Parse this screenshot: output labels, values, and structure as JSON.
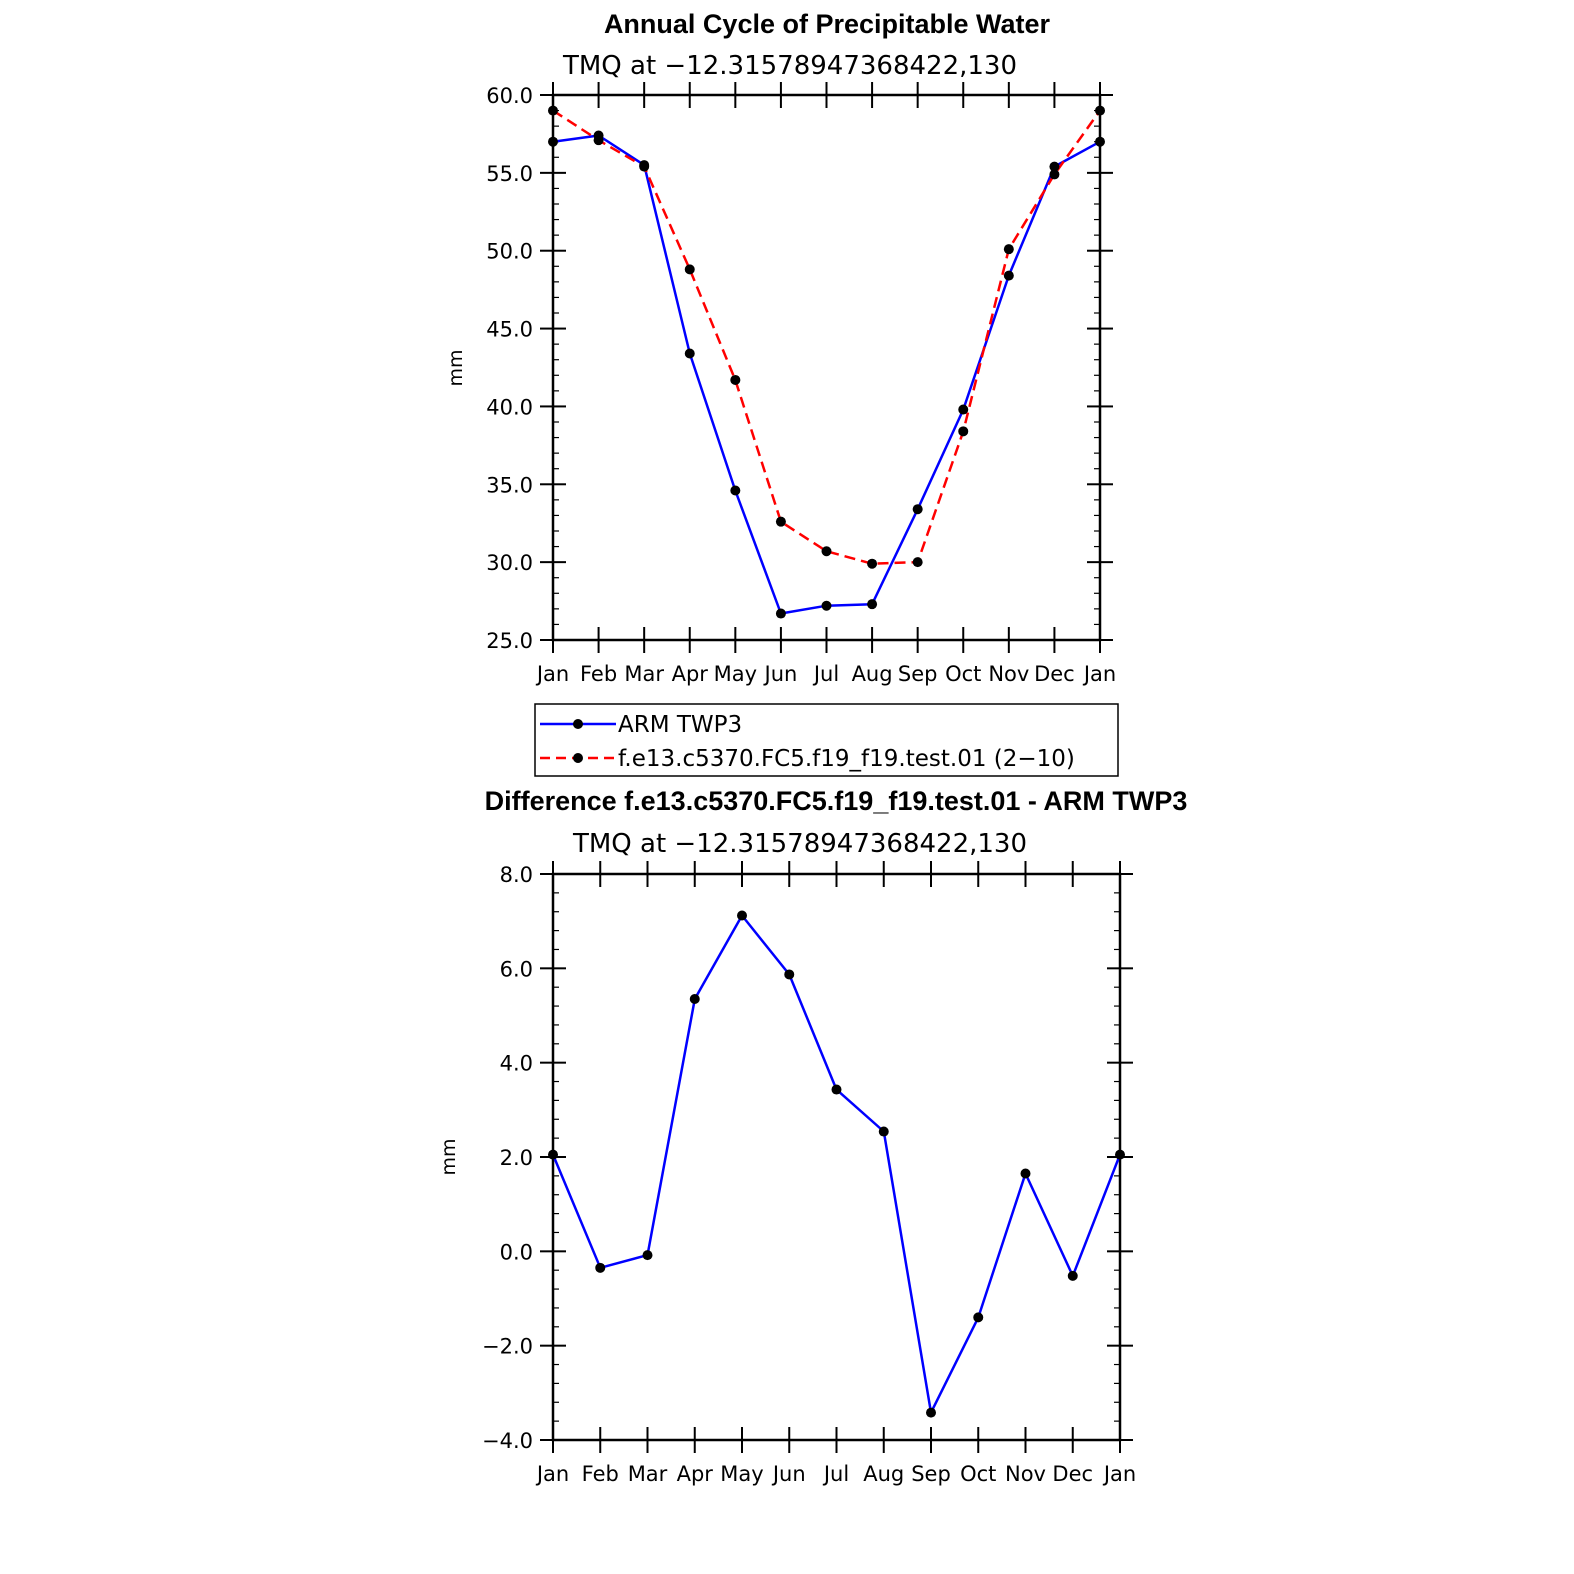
{
  "chart_data": [
    {
      "type": "line",
      "title": "Annual Cycle of Precipitable Water",
      "subtitle": "TMQ at −12.31578947368422,130",
      "ylabel": "mm",
      "ylim": [
        25,
        60
      ],
      "yticks": [
        "25.0",
        "30.0",
        "35.0",
        "40.0",
        "45.0",
        "50.0",
        "55.0",
        "60.0"
      ],
      "ytick_values": [
        25,
        30,
        35,
        40,
        45,
        50,
        55,
        60
      ],
      "y_minor_step": 1,
      "categories": [
        "Jan",
        "Feb",
        "Mar",
        "Apr",
        "May",
        "Jun",
        "Jul",
        "Aug",
        "Sep",
        "Oct",
        "Nov",
        "Dec",
        "Jan"
      ],
      "series": [
        {
          "name": "ARM TWP3",
          "color": "#0000ff",
          "dash": "solid",
          "values": [
            57.0,
            57.4,
            55.5,
            43.4,
            34.6,
            26.7,
            27.2,
            27.3,
            33.4,
            39.8,
            48.4,
            55.4,
            57.0
          ]
        },
        {
          "name": "f.e13.c5370.FC5.f19_f19.test.01 (2−10)",
          "color": "#ff0000",
          "dash": "dashed",
          "values": [
            59.0,
            57.1,
            55.4,
            48.8,
            41.7,
            32.6,
            30.7,
            29.9,
            30.0,
            38.4,
            50.1,
            54.9,
            59.0
          ]
        }
      ],
      "legend": [
        "ARM TWP3",
        "f.e13.c5370.FC5.f19_f19.test.01 (2−10)"
      ],
      "legend_position": "below"
    },
    {
      "type": "line",
      "title": "Difference f.e13.c5370.FC5.f19_f19.test.01 - ARM TWP3",
      "subtitle": "TMQ at −12.31578947368422,130",
      "ylabel": "mm",
      "ylim": [
        -4,
        8
      ],
      "yticks": [
        "−4.0",
        "−2.0",
        "0.0",
        "2.0",
        "4.0",
        "6.0",
        "8.0"
      ],
      "ytick_values": [
        -4,
        -2,
        0,
        2,
        4,
        6,
        8
      ],
      "y_minor_step": 0.4,
      "categories": [
        "Jan",
        "Feb",
        "Mar",
        "Apr",
        "May",
        "Jun",
        "Jul",
        "Aug",
        "Sep",
        "Oct",
        "Nov",
        "Dec",
        "Jan"
      ],
      "series": [
        {
          "color": "#0000ff",
          "dash": "solid",
          "values": [
            2.05,
            -0.35,
            -0.08,
            5.35,
            7.12,
            5.87,
            3.43,
            2.54,
            -3.42,
            -1.4,
            1.65,
            -0.52,
            2.05
          ]
        }
      ]
    }
  ]
}
